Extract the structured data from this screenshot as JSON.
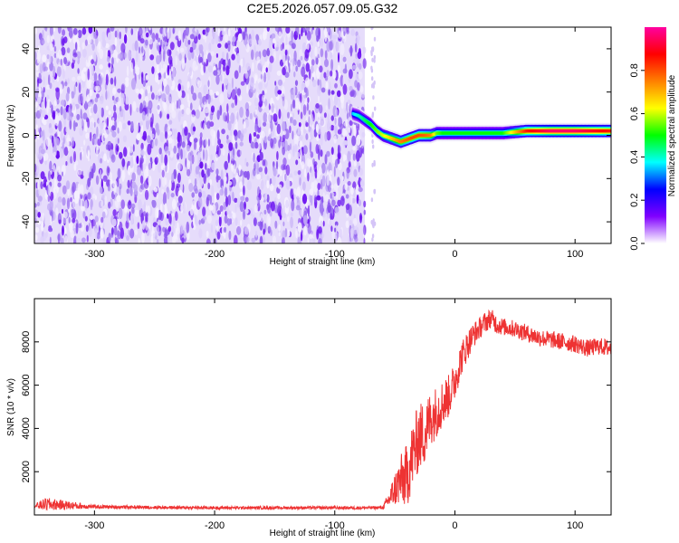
{
  "title": "C2E5.2026.057.09.05.G32",
  "chart_data": [
    {
      "type": "heatmap",
      "title": "C2E5.2026.057.09.05.G32",
      "xlabel": "Height of straight line (km)",
      "ylabel": "Frequency (Hz)",
      "xlim": [
        -350,
        130
      ],
      "ylim": [
        -50,
        50
      ],
      "x_ticks": [
        -300,
        -200,
        -100,
        0,
        100
      ],
      "y_ticks": [
        -40,
        -20,
        0,
        20,
        40
      ],
      "grid": false,
      "noise_region_x": [
        -350,
        -75
      ],
      "signal_track": {
        "x": [
          -85,
          -80,
          -75,
          -70,
          -65,
          -60,
          -55,
          -50,
          -45,
          -40,
          -35,
          -30,
          -25,
          -20,
          -15,
          -10,
          -5,
          0,
          20,
          40,
          60,
          80,
          100,
          130
        ],
        "frequency": [
          10,
          9,
          7,
          5,
          2,
          0,
          -1,
          -2,
          -3,
          -2,
          -1,
          0,
          0,
          0,
          1,
          1,
          1,
          1,
          1,
          1,
          2,
          2,
          2,
          2
        ],
        "amplitude": [
          0.35,
          0.4,
          0.45,
          0.5,
          0.55,
          0.6,
          0.65,
          0.7,
          0.75,
          0.78,
          0.8,
          0.8,
          0.78,
          0.75,
          0.55,
          0.5,
          0.5,
          0.5,
          0.5,
          0.5,
          0.85,
          0.95,
          0.95,
          0.85
        ]
      },
      "colorbar": {
        "label": "Normalized spectral amplitude",
        "range": [
          0,
          1
        ],
        "ticks": [
          "0.0",
          "0.2",
          "0.4",
          "0.6",
          "0.8"
        ],
        "tick_values": [
          0.0,
          0.2,
          0.4,
          0.6,
          0.8
        ],
        "colors": [
          "#ffffff",
          "#8000ff",
          "#0000ff",
          "#00ffff",
          "#00ff00",
          "#ffff00",
          "#ff8000",
          "#ff0000",
          "#ff00a0"
        ]
      }
    },
    {
      "type": "line",
      "xlabel": "Height of straight line (km)",
      "ylabel": "SNR (10 * v/v)",
      "xlim": [
        -350,
        130
      ],
      "ylim": [
        0,
        10000
      ],
      "x_ticks": [
        -300,
        -200,
        -100,
        0,
        100
      ],
      "y_ticks": [
        2000,
        4000,
        6000,
        8000
      ],
      "grid": false,
      "series": [
        {
          "name": "SNR",
          "color": "#ee3333",
          "x": [
            -350,
            -340,
            -300,
            -250,
            -200,
            -150,
            -100,
            -80,
            -60,
            -55,
            -50,
            -45,
            -40,
            -35,
            -30,
            -25,
            -20,
            -15,
            -10,
            -5,
            0,
            5,
            10,
            15,
            20,
            25,
            30,
            35,
            40,
            50,
            60,
            70,
            80,
            90,
            100,
            110,
            120,
            130
          ],
          "values": [
            400,
            500,
            380,
            350,
            330,
            330,
            330,
            330,
            340,
            700,
            1200,
            1600,
            1800,
            2800,
            3600,
            3800,
            4500,
            4800,
            5200,
            5500,
            6200,
            7200,
            7800,
            8300,
            8600,
            8900,
            9100,
            8800,
            8700,
            8600,
            8400,
            8200,
            8100,
            8000,
            7900,
            7700,
            7800,
            7700
          ],
          "noise_amplitude": [
            120,
            300,
            80,
            70,
            70,
            70,
            70,
            70,
            80,
            400,
            800,
            1200,
            1500,
            1600,
            1600,
            1500,
            1300,
            1200,
            1100,
            1000,
            900,
            800,
            700,
            600,
            500,
            500,
            450,
            450,
            400,
            400,
            400,
            400,
            400,
            400,
            400,
            400,
            400,
            400
          ]
        }
      ]
    }
  ]
}
